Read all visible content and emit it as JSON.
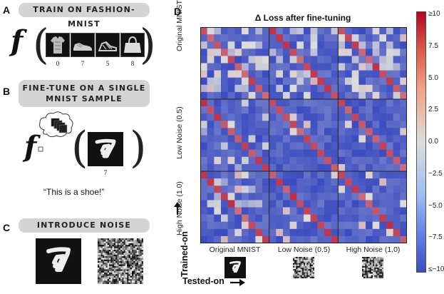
{
  "panel_a": {
    "letter": "A",
    "title": "TRAIN ON FASHION-MNIST",
    "function_symbol": "f",
    "labels": [
      "0",
      "7",
      "5",
      "8"
    ]
  },
  "panel_b": {
    "letter": "B",
    "title_line1": "FINE-TUNE ON A SINGLE",
    "title_line2": "MNIST SAMPLE",
    "function_symbol": "f",
    "label": "7",
    "quote": "“This is a shoe!”"
  },
  "panel_c": {
    "letter": "C",
    "title": "INTRODUCE NOISE"
  },
  "panel_d": {
    "letter": "D",
    "trained_on_label": "Trained-on",
    "tested_on_label": "Tested-on"
  },
  "colors": {
    "pill": "#d4d4d4",
    "blue": "#3b4cc0",
    "red": "#b40426",
    "white": "#f2f2f2"
  },
  "chart_data": {
    "type": "heatmap",
    "title": "Δ Loss after fine-tuning",
    "row_groups": [
      "Original MNIST",
      "Low Noise (0.5)",
      "High Noise (1.0)"
    ],
    "col_groups": [
      "Original MNIST",
      "Low Noise (0.5)",
      "High Noise (1.0)"
    ],
    "colorbar": {
      "range": [
        -10,
        10
      ],
      "ticks": [
        "≥10",
        "7.5",
        "5.0",
        "2.5",
        "0.0",
        "−2.5",
        "−5.0",
        "−7.5",
        "≤−10"
      ],
      "colormap": "coolwarm"
    }
  }
}
